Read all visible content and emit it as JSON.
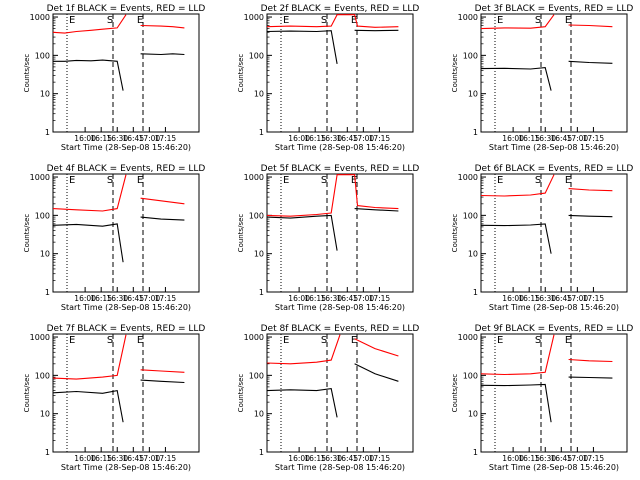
{
  "figure": {
    "xlabel": "Start Time (28-Sep-08 15:46:20)",
    "ylabel": "Counts/sec",
    "x_ticks": [
      "16:00",
      "16:15",
      "16:30",
      "16:45",
      "17:00",
      "17:15"
    ],
    "y_ticks": [
      "1",
      "10",
      "100",
      "1000"
    ],
    "colors": {
      "events": "#000000",
      "lld": "#ff0000",
      "frame": "#000000"
    }
  },
  "chart_data": [
    {
      "type": "line",
      "title": "Det 1f BLACK = Events, RED = LLD",
      "ylabel": "Counts/sec",
      "xlabel": "Start Time (28-Sep-08 15:46:20)",
      "yscale": "log",
      "ylim": [
        1,
        1200
      ],
      "markers": [
        {
          "label": "E",
          "style": "dotted"
        },
        {
          "label": "S",
          "style": "dashed"
        },
        {
          "label": "E",
          "style": "dashed"
        }
      ],
      "series": [
        {
          "name": "Events",
          "color": "#000000",
          "x": [
            0,
            8,
            16,
            26,
            34,
            44,
            48,
            52,
            60,
            74,
            82,
            90
          ],
          "values": [
            70,
            70,
            74,
            72,
            75,
            70,
            12,
            null,
            110,
            105,
            110,
            105
          ]
        },
        {
          "name": "LLD",
          "color": "#ff0000",
          "x": [
            0,
            8,
            16,
            26,
            34,
            44,
            50,
            52,
            60,
            74,
            82,
            90
          ],
          "values": [
            400,
            380,
            420,
            450,
            480,
            520,
            1150,
            null,
            600,
            580,
            560,
            520
          ]
        }
      ]
    },
    {
      "type": "line",
      "title": "Det 2f BLACK = Events, RED = LLD",
      "ylabel": "Counts/sec",
      "xlabel": "Start Time (28-Sep-08 15:46:20)",
      "yscale": "log",
      "ylim": [
        1,
        1200
      ],
      "markers": [
        {
          "label": "E",
          "style": "dotted"
        },
        {
          "label": "S",
          "style": "dashed"
        },
        {
          "label": "E",
          "style": "dashed"
        }
      ],
      "series": [
        {
          "name": "Events",
          "color": "#000000",
          "x": [
            0,
            16,
            34,
            44,
            48,
            52,
            60,
            74,
            90
          ],
          "values": [
            420,
            430,
            420,
            440,
            60,
            null,
            450,
            440,
            450
          ]
        },
        {
          "name": "LLD",
          "color": "#ff0000",
          "x": [
            0,
            16,
            34,
            44,
            48,
            60,
            62,
            74,
            90
          ],
          "values": [
            560,
            580,
            560,
            580,
            1150,
            1150,
            580,
            540,
            560
          ]
        }
      ]
    },
    {
      "type": "line",
      "title": "Det 3f BLACK = Events, RED = LLD",
      "ylabel": "Counts/sec",
      "xlabel": "Start Time (28-Sep-08 15:46:20)",
      "yscale": "log",
      "ylim": [
        1,
        1200
      ],
      "markers": [
        {
          "label": "E",
          "style": "dotted"
        },
        {
          "label": "S",
          "style": "dashed"
        },
        {
          "label": "E",
          "style": "dashed"
        }
      ],
      "series": [
        {
          "name": "Events",
          "color": "#000000",
          "x": [
            0,
            16,
            34,
            44,
            48,
            52,
            60,
            74,
            90
          ],
          "values": [
            45,
            46,
            44,
            48,
            12,
            null,
            70,
            65,
            62
          ]
        },
        {
          "name": "LLD",
          "color": "#ff0000",
          "x": [
            0,
            16,
            34,
            44,
            50,
            52,
            60,
            74,
            90
          ],
          "values": [
            500,
            520,
            510,
            560,
            1150,
            null,
            620,
            600,
            560
          ]
        }
      ]
    },
    {
      "type": "line",
      "title": "Det 4f BLACK = Events, RED = LLD",
      "ylabel": "Counts/sec",
      "xlabel": "Start Time (28-Sep-08 15:46:20)",
      "yscale": "log",
      "ylim": [
        1,
        1200
      ],
      "markers": [
        {
          "label": "E",
          "style": "dotted"
        },
        {
          "label": "S",
          "style": "dashed"
        },
        {
          "label": "E",
          "style": "dashed"
        }
      ],
      "series": [
        {
          "name": "Events",
          "color": "#000000",
          "x": [
            0,
            16,
            34,
            44,
            48,
            52,
            60,
            74,
            90
          ],
          "values": [
            55,
            58,
            52,
            60,
            6,
            null,
            90,
            80,
            75
          ]
        },
        {
          "name": "LLD",
          "color": "#ff0000",
          "x": [
            0,
            16,
            34,
            44,
            50,
            52,
            60,
            74,
            90
          ],
          "values": [
            150,
            140,
            130,
            150,
            1150,
            null,
            280,
            240,
            200
          ]
        }
      ]
    },
    {
      "type": "line",
      "title": "Det 5f BLACK = Events, RED = LLD",
      "ylabel": "Counts/sec",
      "xlabel": "Start Time (28-Sep-08 15:46:20)",
      "yscale": "log",
      "ylim": [
        1,
        1200
      ],
      "markers": [
        {
          "label": "E",
          "style": "dotted"
        },
        {
          "label": "S",
          "style": "dashed"
        },
        {
          "label": "E",
          "style": "dashed"
        }
      ],
      "series": [
        {
          "name": "Events",
          "color": "#000000",
          "x": [
            0,
            16,
            34,
            44,
            48,
            52,
            60,
            74,
            90
          ],
          "values": [
            90,
            85,
            95,
            100,
            12,
            null,
            150,
            140,
            130
          ]
        },
        {
          "name": "LLD",
          "color": "#ff0000",
          "x": [
            0,
            16,
            34,
            44,
            48,
            60,
            62,
            74,
            90
          ],
          "values": [
            100,
            95,
            105,
            115,
            1150,
            1150,
            180,
            160,
            150
          ]
        }
      ]
    },
    {
      "type": "line",
      "title": "Det 6f BLACK = Events, RED = LLD",
      "ylabel": "Counts/sec",
      "xlabel": "Start Time (28-Sep-08 15:46:20)",
      "yscale": "log",
      "ylim": [
        1,
        1200
      ],
      "markers": [
        {
          "label": "E",
          "style": "dotted"
        },
        {
          "label": "S",
          "style": "dashed"
        },
        {
          "label": "E",
          "style": "dashed"
        }
      ],
      "series": [
        {
          "name": "Events",
          "color": "#000000",
          "x": [
            0,
            16,
            34,
            44,
            48,
            52,
            60,
            74,
            90
          ],
          "values": [
            55,
            54,
            56,
            60,
            10,
            null,
            100,
            95,
            92
          ]
        },
        {
          "name": "LLD",
          "color": "#ff0000",
          "x": [
            0,
            16,
            34,
            44,
            50,
            52,
            60,
            74,
            90
          ],
          "values": [
            330,
            320,
            340,
            380,
            1150,
            null,
            500,
            460,
            440
          ]
        }
      ]
    },
    {
      "type": "line",
      "title": "Det 7f BLACK = Events, RED = LLD",
      "ylabel": "Counts/sec",
      "xlabel": "Start Time (28-Sep-08 15:46:20)",
      "yscale": "log",
      "ylim": [
        1,
        1200
      ],
      "markers": [
        {
          "label": "E",
          "style": "dotted"
        },
        {
          "label": "S",
          "style": "dashed"
        },
        {
          "label": "E",
          "style": "dashed"
        }
      ],
      "series": [
        {
          "name": "Events",
          "color": "#000000",
          "x": [
            0,
            16,
            34,
            44,
            48,
            52,
            60,
            74,
            90
          ],
          "values": [
            35,
            38,
            34,
            40,
            6,
            null,
            75,
            70,
            65
          ]
        },
        {
          "name": "LLD",
          "color": "#ff0000",
          "x": [
            0,
            16,
            34,
            44,
            50,
            52,
            60,
            74,
            90
          ],
          "values": [
            85,
            80,
            90,
            100,
            1150,
            null,
            140,
            130,
            120
          ]
        }
      ]
    },
    {
      "type": "line",
      "title": "Det 8f BLACK = Events, RED = LLD",
      "ylabel": "Counts/sec",
      "xlabel": "Start Time (28-Sep-08 15:46:20)",
      "yscale": "log",
      "ylim": [
        1,
        1200
      ],
      "markers": [
        {
          "label": "E",
          "style": "dotted"
        },
        {
          "label": "S",
          "style": "dashed"
        },
        {
          "label": "E",
          "style": "dashed"
        }
      ],
      "series": [
        {
          "name": "Events",
          "color": "#000000",
          "x": [
            0,
            16,
            34,
            44,
            48,
            52,
            60,
            74,
            90
          ],
          "values": [
            40,
            42,
            40,
            45,
            8,
            null,
            200,
            110,
            70
          ]
        },
        {
          "name": "LLD",
          "color": "#ff0000",
          "x": [
            0,
            16,
            34,
            44,
            50,
            52,
            60,
            74,
            90
          ],
          "values": [
            210,
            200,
            220,
            250,
            1150,
            null,
            900,
            500,
            320
          ]
        }
      ]
    },
    {
      "type": "line",
      "title": "Det 9f BLACK = Events, RED = LLD",
      "ylabel": "Counts/sec",
      "xlabel": "Start Time (28-Sep-08 15:46:20)",
      "yscale": "log",
      "ylim": [
        1,
        1200
      ],
      "markers": [
        {
          "label": "E",
          "style": "dotted"
        },
        {
          "label": "S",
          "style": "dashed"
        },
        {
          "label": "E",
          "style": "dashed"
        }
      ],
      "series": [
        {
          "name": "Events",
          "color": "#000000",
          "x": [
            0,
            16,
            34,
            44,
            48,
            52,
            60,
            74,
            90
          ],
          "values": [
            55,
            54,
            56,
            58,
            6,
            null,
            90,
            88,
            85
          ]
        },
        {
          "name": "LLD",
          "color": "#ff0000",
          "x": [
            0,
            16,
            34,
            44,
            50,
            52,
            60,
            74,
            90
          ],
          "values": [
            110,
            105,
            110,
            120,
            1150,
            null,
            260,
            240,
            230
          ]
        }
      ]
    }
  ]
}
